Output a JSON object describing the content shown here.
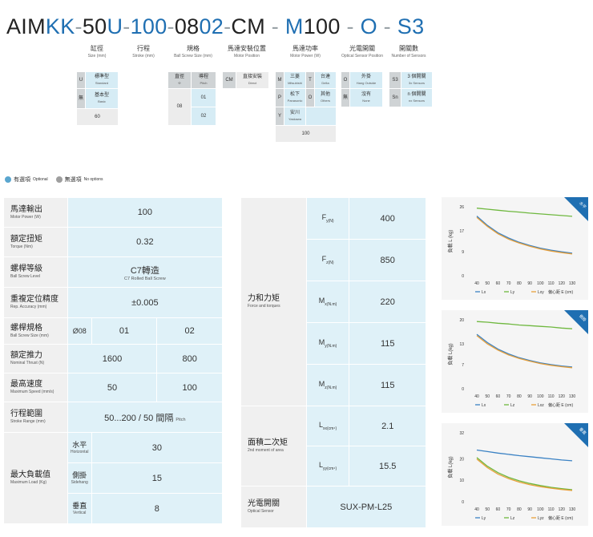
{
  "model": {
    "parts": [
      {
        "text": "AIM",
        "color": "k"
      },
      {
        "text": "KK",
        "color": "b"
      },
      {
        "text": "-",
        "color": "d"
      },
      {
        "text": "50",
        "color": "k"
      },
      {
        "text": "U",
        "color": "b"
      },
      {
        "text": "-",
        "color": "d"
      },
      {
        "text": "100",
        "color": "b"
      },
      {
        "text": "-",
        "color": "d"
      },
      {
        "text": "08",
        "color": "k"
      },
      {
        "text": "02",
        "color": "b"
      },
      {
        "text": "-",
        "color": "d"
      },
      {
        "text": "CM",
        "color": "k"
      },
      {
        "text": " - ",
        "color": "d"
      },
      {
        "text": "M",
        "color": "b"
      },
      {
        "text": "100",
        "color": "k"
      },
      {
        "text": " - ",
        "color": "d"
      },
      {
        "text": "O",
        "color": "b"
      },
      {
        "text": " - ",
        "color": "d"
      },
      {
        "text": "S3",
        "color": "b"
      }
    ],
    "segments": {
      "stroke_cyl": {
        "zh": "缸徑",
        "en": "Size (mm)"
      },
      "stroke": {
        "zh": "行程",
        "en": "Stroke (mm)"
      },
      "spec": {
        "zh": "規格",
        "en": "Ball Screw Size (mm)"
      },
      "motor_pos": {
        "zh": "馬達安裝位置",
        "en": "Motor Position"
      },
      "motor_power": {
        "zh": "馬達功率",
        "en": "Motor Power (W)"
      },
      "sensor": {
        "zh": "光電開關",
        "en": "Optical Sensor Position"
      },
      "sensor_count": {
        "zh": "開關數",
        "en": "Number of Sensors"
      }
    },
    "options": {
      "size": {
        "u_code": "U",
        "u_zh": "標準型",
        "u_en": "Standard",
        "b_code": "無",
        "b_zh": "基本型",
        "b_en": "Basic",
        "size_val": "60"
      },
      "spec": {
        "h1_zh": "直徑",
        "h1_sym": "Φ",
        "h2_zh": "導程",
        "h2_en": "Pitch",
        "dia": "08",
        "p1": "01",
        "p2": "02"
      },
      "motor_pos": {
        "code": "CM",
        "zh": "直接安裝",
        "en": "Direct"
      },
      "motor_power": {
        "m_code": "M",
        "m_zh": "三菱",
        "m_en": "Mitsubishi",
        "t_code": "T",
        "t_zh": "台達",
        "t_en": "Delta",
        "p_code": "P",
        "p_zh": "松下",
        "p_en": "Panasonic",
        "o_code": "O",
        "o_zh": "其他",
        "o_en": "Others",
        "y_code": "Y",
        "y_zh": "安川",
        "y_en": "Yaskawa",
        "power": "100"
      },
      "sensor": {
        "o_code": "O",
        "o_zh": "外掛",
        "o_en": "Hang Outside",
        "n_code": "無",
        "n_zh": "沒有",
        "n_en": "None"
      },
      "sensor_count": {
        "s3_code": "S3",
        "s3_zh": "3 個開關",
        "s3_en": "3x Sensors",
        "sn_code": "Sn",
        "sn_zh": "n 個開關",
        "sn_en": "nx Sensors"
      }
    }
  },
  "legend": {
    "opt_zh": "有選項",
    "opt_en": "Optional",
    "no_zh": "無選項",
    "no_en": "No options"
  },
  "table1": {
    "rows": [
      {
        "zh": "馬達輸出",
        "en": "Motor Power (W)",
        "value": "100"
      },
      {
        "zh": "額定扭矩",
        "en": "Torque (Nm)",
        "value": "0.32"
      },
      {
        "zh": "螺桿等級",
        "en": "Ball Screw Level",
        "value": "C7轉造",
        "value_en": "C7 Rolled Ball Screw"
      },
      {
        "zh": "重複定位精度",
        "en": "Rep. Accuracy (mm)",
        "value": "±0.005"
      }
    ],
    "screw": {
      "zh": "螺桿規格",
      "en": "Ball Screw Size (mm)",
      "dia": "Ø08",
      "v1": "01",
      "v2": "02"
    },
    "thrust": {
      "zh": "額定推力",
      "en": "Nominal Thrust (N)",
      "v1": "1600",
      "v2": "800"
    },
    "speed": {
      "zh": "最高速度",
      "en": "Maximum Speed (mm/s)",
      "v1": "50",
      "v2": "100"
    },
    "stroke": {
      "zh": "行程範圍",
      "en": "Stroke Range (mm)",
      "value": "50...200 / 50 間隔",
      "value_en": "Pitch"
    },
    "load": {
      "zh": "最大負載值",
      "en": "Maximum Load (Kg)",
      "rows": [
        {
          "zh": "水平",
          "en": "Horizontal",
          "value": "30"
        },
        {
          "zh": "側掛",
          "en": "Sidehang",
          "value": "15"
        },
        {
          "zh": "垂直",
          "en": "Vertical",
          "value": "8"
        }
      ]
    }
  },
  "table2": {
    "force": {
      "zh": "力和力矩",
      "en": "Force and torques"
    },
    "force_rows": [
      {
        "sym": "F",
        "sub": "y",
        "unit": "(N)",
        "value": "400"
      },
      {
        "sym": "F",
        "sub": "z",
        "unit": "(N)",
        "value": "850"
      },
      {
        "sym": "M",
        "sub": "x",
        "unit": "(N.m)",
        "value": "220"
      },
      {
        "sym": "M",
        "sub": "y",
        "unit": "(N.m)",
        "value": "115"
      },
      {
        "sym": "M",
        "sub": "z",
        "unit": "(N.m)",
        "value": "115"
      }
    ],
    "moment": {
      "zh": "面積二次矩",
      "en": "2nd moment of area"
    },
    "moment_rows": [
      {
        "sym": "L",
        "sub": "xx",
        "unit": "(cm⁴)",
        "value": "2.1"
      },
      {
        "sym": "L",
        "sub": "yy",
        "unit": "(cm⁴)",
        "value": "15.5"
      }
    ],
    "sensor": {
      "zh": "光電開關",
      "en": "Optical Sensor",
      "value": "SUX-PM-L25"
    }
  },
  "colors": {
    "blue": "#3b82c4",
    "green": "#6fb83f",
    "orange": "#e8a03a",
    "badge": "#1f6fb2"
  },
  "chart_data": [
    {
      "type": "line",
      "badge": "水平",
      "ylabel": "負載 L (kg)",
      "x": [
        40,
        50,
        60,
        70,
        80,
        90,
        100,
        110,
        120,
        130
      ],
      "xticks": [
        "40",
        "50",
        "60",
        "70",
        "80",
        "90",
        "100",
        "110",
        "120",
        "130"
      ],
      "yticks": [
        "0",
        "9",
        "17",
        "26"
      ],
      "ylim": [
        0,
        26
      ],
      "series": [
        {
          "name": "Lx",
          "color": "blue",
          "values": [
            22.5,
            19,
            16.2,
            14.2,
            12.6,
            11.4,
            10.4,
            9.6,
            9.0,
            8.5
          ]
        },
        {
          "name": "Ly",
          "color": "green",
          "values": [
            25.5,
            25.1,
            24.7,
            24.3,
            24.0,
            23.6,
            23.3,
            23.0,
            22.7,
            22.4
          ]
        },
        {
          "name": "Lxy",
          "color": "orange",
          "values": [
            22.0,
            18.6,
            15.8,
            13.8,
            12.3,
            11.1,
            10.1,
            9.3,
            8.7,
            8.2
          ]
        }
      ],
      "legend": [
        "Lx",
        "Ly",
        "Lxy"
      ],
      "xlabel": "偏心距 E (cm)"
    },
    {
      "type": "line",
      "badge": "側掛",
      "ylabel": "負載 L(kg)",
      "x": [
        40,
        50,
        60,
        70,
        80,
        90,
        100,
        110,
        120,
        130
      ],
      "xticks": [
        "40",
        "50",
        "60",
        "70",
        "80",
        "90",
        "100",
        "110",
        "120",
        "130"
      ],
      "yticks": [
        "0",
        "7",
        "13",
        "20"
      ],
      "ylim": [
        0,
        20
      ],
      "series": [
        {
          "name": "Lx",
          "color": "blue",
          "values": [
            15.8,
            13.4,
            11.5,
            10.1,
            9.0,
            8.2,
            7.5,
            7.0,
            6.6,
            6.3
          ]
        },
        {
          "name": "Lz",
          "color": "green",
          "values": [
            19.5,
            19.3,
            19.0,
            18.8,
            18.5,
            18.3,
            18.1,
            17.9,
            17.6,
            17.4
          ]
        },
        {
          "name": "Lxz",
          "color": "orange",
          "values": [
            15.4,
            13.0,
            11.2,
            9.8,
            8.8,
            8.0,
            7.3,
            6.8,
            6.4,
            6.1
          ]
        }
      ],
      "legend": [
        "Lx",
        "Lz",
        "Lxz"
      ],
      "xlabel": "偏心距 E (cm)"
    },
    {
      "type": "line",
      "badge": "垂直",
      "ylabel": "負載 L(kg)",
      "x": [
        40,
        50,
        60,
        70,
        80,
        90,
        100,
        110,
        120,
        130
      ],
      "xticks": [
        "40",
        "50",
        "60",
        "70",
        "80",
        "90",
        "100",
        "110",
        "120",
        "130"
      ],
      "yticks": [
        "0",
        "10",
        "20",
        "32"
      ],
      "ylim": [
        0,
        32
      ],
      "series": [
        {
          "name": "Ly",
          "color": "blue",
          "values": [
            24.0,
            23.3,
            22.6,
            22.0,
            21.4,
            20.9,
            20.4,
            19.9,
            19.4,
            19.0
          ]
        },
        {
          "name": "Lz",
          "color": "green",
          "values": [
            20.5,
            16.5,
            13.5,
            11.3,
            9.7,
            8.5,
            7.5,
            6.7,
            6.1,
            5.6
          ]
        },
        {
          "name": "Lyz",
          "color": "orange",
          "values": [
            19.8,
            15.8,
            12.8,
            10.7,
            9.1,
            7.9,
            7.0,
            6.3,
            5.7,
            5.2
          ]
        }
      ],
      "legend": [
        "Ly",
        "Lz",
        "Lyz"
      ],
      "xlabel": "偏心距 E (cm)"
    }
  ]
}
